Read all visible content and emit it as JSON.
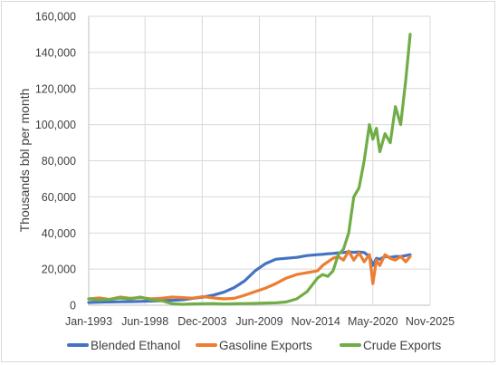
{
  "chart_data": {
    "type": "line",
    "title": "",
    "xlabel": "",
    "ylabel": "Thousands bbl per month",
    "x_tick_labels": [
      "Jan-1993",
      "Jun-1998",
      "Dec-2003",
      "Jun-2009",
      "Nov-2014",
      "May-2020",
      "Nov-2025"
    ],
    "x_tick_dates": [
      "1993-01",
      "1998-06",
      "2003-12",
      "2009-06",
      "2014-11",
      "2020-05",
      "2025-11"
    ],
    "y_tick_labels": [
      "0",
      "20,000",
      "40,000",
      "60,000",
      "80,000",
      "100,000",
      "120,000",
      "140,000",
      "160,000"
    ],
    "ylim": [
      0,
      160000
    ],
    "grid": "vertical and horizontal",
    "legend_position": "bottom",
    "x": [
      "1993-01",
      "1994-01",
      "1995-01",
      "1996-01",
      "1997-01",
      "1998-01",
      "1999-01",
      "2000-01",
      "2001-01",
      "2002-01",
      "2003-01",
      "2004-01",
      "2005-01",
      "2006-01",
      "2007-01",
      "2008-01",
      "2009-01",
      "2010-01",
      "2011-01",
      "2012-01",
      "2013-01",
      "2014-01",
      "2015-01",
      "2015-07",
      "2016-01",
      "2016-07",
      "2017-01",
      "2017-07",
      "2018-01",
      "2018-07",
      "2019-01",
      "2019-07",
      "2020-01",
      "2020-05",
      "2020-09",
      "2021-01",
      "2021-07",
      "2022-01",
      "2022-07",
      "2023-01",
      "2023-07",
      "2023-12"
    ],
    "series": [
      {
        "name": "Blended Ethanol",
        "color": "#4472C4",
        "values": [
          1500,
          1700,
          1800,
          1900,
          2000,
          2100,
          2300,
          2500,
          2700,
          3000,
          3800,
          4500,
          5600,
          7200,
          9800,
          13500,
          19000,
          23000,
          25500,
          26000,
          26500,
          27500,
          28000,
          28200,
          28500,
          28700,
          29000,
          29200,
          29500,
          29300,
          29500,
          29200,
          27000,
          22000,
          26000,
          25500,
          27000,
          26500,
          27000,
          27000,
          27500,
          28000
        ]
      },
      {
        "name": "Gasoline Exports",
        "color": "#ED7D31",
        "values": [
          3500,
          4000,
          3200,
          4500,
          3800,
          4200,
          3500,
          3800,
          4500,
          4200,
          3900,
          4800,
          4000,
          3500,
          3800,
          5500,
          7500,
          9500,
          12000,
          15000,
          17000,
          18000,
          19000,
          22000,
          24000,
          26000,
          27000,
          25000,
          30000,
          25000,
          29000,
          24000,
          28000,
          12000,
          25000,
          22000,
          28000,
          26000,
          25000,
          27000,
          24000,
          27000
        ]
      },
      {
        "name": "Crude Exports",
        "color": "#70AD47",
        "values": [
          3500,
          3000,
          3200,
          4000,
          3500,
          4500,
          3000,
          2500,
          800,
          500,
          700,
          800,
          900,
          700,
          800,
          900,
          1000,
          1200,
          1300,
          1800,
          3500,
          7500,
          15000,
          17000,
          16000,
          19000,
          28000,
          31000,
          40000,
          60000,
          65000,
          80000,
          100000,
          92000,
          98000,
          85000,
          95000,
          90000,
          110000,
          100000,
          125000,
          150000
        ]
      }
    ]
  }
}
